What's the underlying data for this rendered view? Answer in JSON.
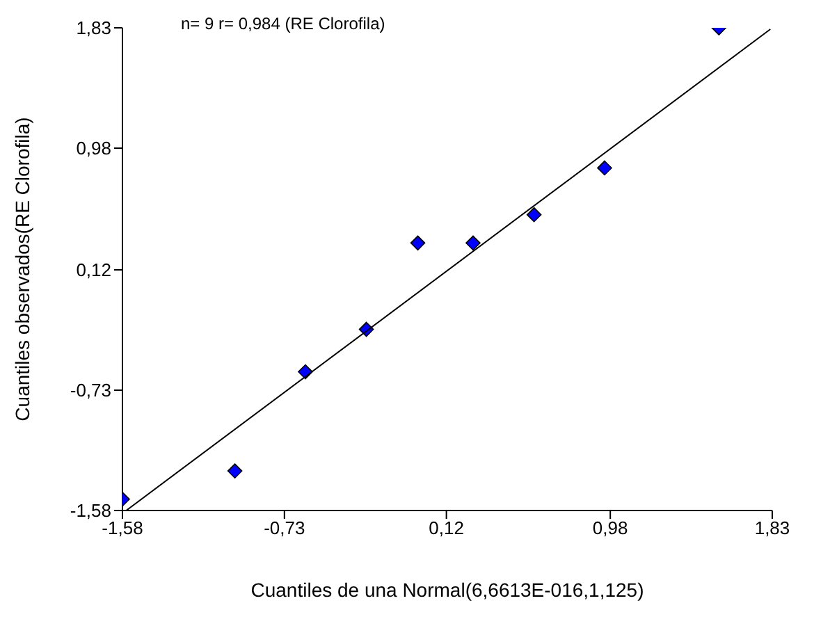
{
  "chart_data": {
    "type": "scatter",
    "xlabel": "Cuantiles de una Normal(6,6613E-016,1,125)",
    "ylabel": "Cuantiles observados(RE Clorofila)",
    "annotations": [
      "n= 9 r= 0,984 (RE Clorofila)"
    ],
    "xlim": [
      -1.58,
      1.83
    ],
    "ylim": [
      -1.58,
      1.83
    ],
    "xticks": [
      {
        "value": -1.58,
        "label": "-1,58"
      },
      {
        "value": -0.73,
        "label": "-0,73"
      },
      {
        "value": 0.12,
        "label": "0,12"
      },
      {
        "value": 0.98,
        "label": "0,98"
      },
      {
        "value": 1.83,
        "label": "1,83"
      }
    ],
    "yticks": [
      {
        "value": -1.58,
        "label": "-1,58"
      },
      {
        "value": -0.73,
        "label": "-0,73"
      },
      {
        "value": 0.12,
        "label": "0,12"
      },
      {
        "value": 0.98,
        "label": "0,98"
      },
      {
        "value": 1.83,
        "label": "1,83"
      }
    ],
    "grid": false,
    "legend": false,
    "series": [
      {
        "marker": "diamond",
        "color": "#0000ff",
        "x": [
          -1.58,
          -0.99,
          -0.62,
          -0.3,
          -0.03,
          0.26,
          0.58,
          0.95,
          1.55
        ],
        "values": [
          -1.5,
          -1.3,
          -0.6,
          -0.3,
          0.31,
          0.31,
          0.51,
          0.84,
          1.83
        ]
      },
      {
        "type": "line",
        "color": "#000000",
        "x": [
          -1.56,
          1.82
        ],
        "values": [
          -1.58,
          1.82
        ]
      }
    ]
  }
}
